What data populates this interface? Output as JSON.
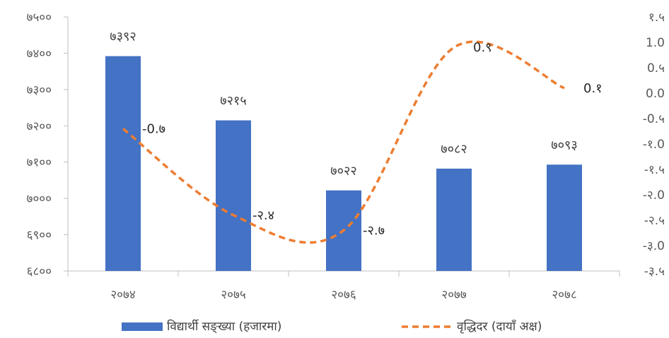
{
  "chart_data": {
    "type": "bar+line",
    "categories": [
      "२०७४",
      "२०७५",
      "२०७६",
      "२०७७",
      "२०७८"
    ],
    "series": [
      {
        "name": "विद्यार्थी सङ्ख्या (हजारमा)",
        "type": "bar",
        "axis": "left",
        "color": "#4472c4",
        "values": [
          7392,
          7215,
          7022,
          7082,
          7093
        ],
        "labels": [
          "७३९२",
          "७२१५",
          "७०२२",
          "७०८२",
          "७०९३"
        ]
      },
      {
        "name": "वृद्धिदर (दायाँ अक्ष)",
        "type": "line",
        "style": "dashed-smooth",
        "axis": "right",
        "color": "#ed7d31",
        "values": [
          -0.7,
          -2.4,
          -2.7,
          0.9,
          0.1
        ],
        "labels": [
          "-0.७",
          "-२.४",
          "-२.७",
          "0.९",
          "0.१"
        ]
      }
    ],
    "left_axis": {
      "ylim": [
        6800,
        7500
      ],
      "ticks": [
        7500,
        7400,
        7300,
        7200,
        7100,
        7000,
        6900,
        6800
      ],
      "tick_labels": [
        "७५००",
        "७४००",
        "७३००",
        "७२००",
        "७१००",
        "७०००",
        "६९००",
        "६८००"
      ]
    },
    "right_axis": {
      "ylim": [
        -3.5,
        1.5
      ],
      "ticks": [
        1.5,
        1.0,
        0.5,
        0.0,
        -0.5,
        -1.0,
        -1.5,
        -2.0,
        -2.5,
        -3.0,
        -3.5
      ],
      "tick_labels": [
        "१.५",
        "1.0",
        "0.५",
        "0.0",
        "-0.५",
        "-१.0",
        "-१.५",
        "-२.0",
        "-२.५",
        "-३.0",
        "-३.५"
      ]
    },
    "legend_position": "bottom",
    "grid": false
  }
}
